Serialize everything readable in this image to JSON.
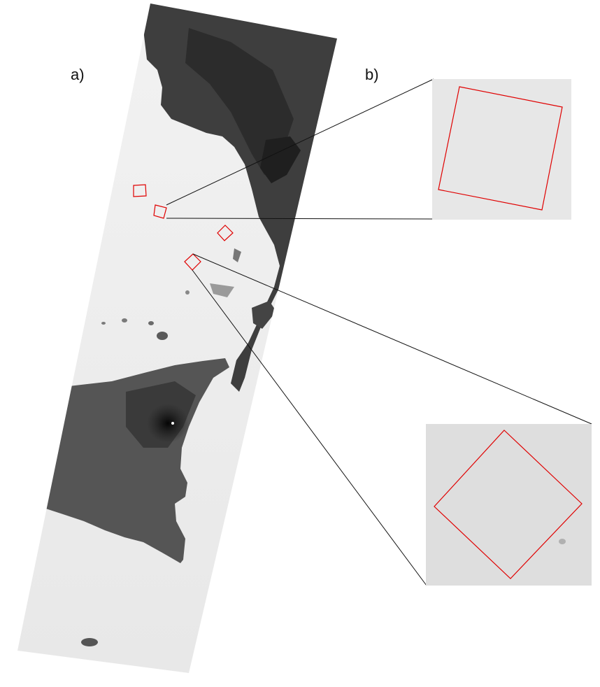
{
  "labels": {
    "panel_a": "a)",
    "panel_b": "b)"
  },
  "colors": {
    "roi_outline": "#e00000",
    "connector_line": "#111111",
    "sea": "#ededed",
    "land": "#4a4a4a"
  },
  "regions_of_interest": [
    {
      "id": "roi-1",
      "shape": "square",
      "zoomed": false
    },
    {
      "id": "roi-2",
      "shape": "square",
      "zoomed": true
    },
    {
      "id": "roi-3",
      "shape": "diamond",
      "zoomed": false
    },
    {
      "id": "roi-4",
      "shape": "diamond",
      "zoomed": true
    }
  ]
}
